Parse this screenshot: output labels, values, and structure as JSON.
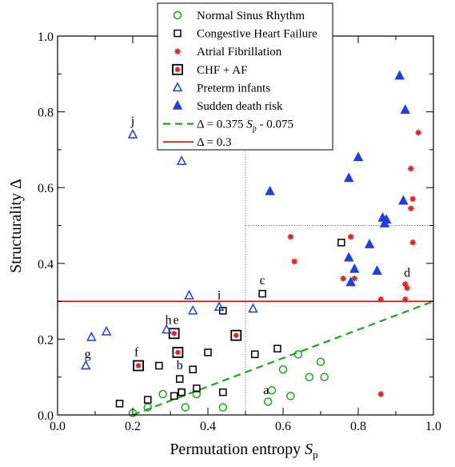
{
  "chart_data": {
    "type": "scatter",
    "xlabel": "Permutation entropy",
    "xlabel_sub": "p",
    "xlabel_var": "S",
    "ylabel": "Structurality Δ",
    "xlim": [
      0.0,
      1.0
    ],
    "ylim": [
      0.0,
      1.0
    ],
    "x_ticks": [
      "0.0",
      "0.2",
      "0.4",
      "0.6",
      "0.8",
      "1.0"
    ],
    "y_ticks": [
      "0.0",
      "0.2",
      "0.4",
      "0.6",
      "0.8",
      "1.0"
    ],
    "grid": false,
    "reference_lines": {
      "vertical_dotted_x": 0.5,
      "horizontal_dotted_y": 0.5,
      "horizontal_solid_y": 0.3,
      "dashed_line": {
        "slope": 0.375,
        "intercept": -0.075
      }
    },
    "legend": {
      "placement": "top-center",
      "entries": [
        {
          "label": "Normal Sinus Rhythm",
          "marker": "circle-open",
          "color": "#22a022"
        },
        {
          "label": "Congestive Heart Failure",
          "marker": "square-open",
          "color": "#000000"
        },
        {
          "label": "Atrial Fibrillation",
          "marker": "star",
          "color": "#e02020"
        },
        {
          "label": "CHF + AF",
          "marker": "square-star",
          "color": "#000000"
        },
        {
          "label": "Preterm infants",
          "marker": "triangle-open",
          "color": "#1f3fe0"
        },
        {
          "label": "Sudden death risk",
          "marker": "triangle-filled",
          "color": "#1f3fe0"
        },
        {
          "label": "Δ = 0.375 S",
          "label_sub": "p",
          "label_tail": " - 0.075",
          "marker": "line-dashed",
          "color": "#22a022"
        },
        {
          "label": "Δ = 0.3",
          "marker": "line-solid",
          "color": "#e02020"
        }
      ]
    },
    "series": [
      {
        "name": "Normal Sinus Rhythm",
        "points": [
          [
            0.2,
            0.005
          ],
          [
            0.24,
            0.02
          ],
          [
            0.28,
            0.055
          ],
          [
            0.33,
            0.06
          ],
          [
            0.34,
            0.02
          ],
          [
            0.37,
            0.055
          ],
          [
            0.44,
            0.02
          ],
          [
            0.56,
            0.035
          ],
          [
            0.57,
            0.065
          ],
          [
            0.6,
            0.12
          ],
          [
            0.62,
            0.05
          ],
          [
            0.64,
            0.16
          ],
          [
            0.67,
            0.1
          ],
          [
            0.7,
            0.14
          ],
          [
            0.71,
            0.1
          ]
        ]
      },
      {
        "name": "Congestive Heart Failure",
        "points": [
          [
            0.165,
            0.03
          ],
          [
            0.24,
            0.04
          ],
          [
            0.27,
            0.13
          ],
          [
            0.31,
            0.05
          ],
          [
            0.325,
            0.095
          ],
          [
            0.33,
            0.06
          ],
          [
            0.36,
            0.12
          ],
          [
            0.37,
            0.07
          ],
          [
            0.4,
            0.165
          ],
          [
            0.44,
            0.06
          ],
          [
            0.44,
            0.275
          ],
          [
            0.525,
            0.16
          ],
          [
            0.545,
            0.32
          ],
          [
            0.585,
            0.175
          ],
          [
            0.755,
            0.455
          ]
        ]
      },
      {
        "name": "Atrial Fibrillation",
        "points": [
          [
            0.62,
            0.47
          ],
          [
            0.63,
            0.405
          ],
          [
            0.76,
            0.36
          ],
          [
            0.78,
            0.47
          ],
          [
            0.79,
            0.36
          ],
          [
            0.86,
            0.305
          ],
          [
            0.86,
            0.055
          ],
          [
            0.925,
            0.345
          ],
          [
            0.925,
            0.305
          ],
          [
            0.93,
            0.335
          ],
          [
            0.94,
            0.65
          ],
          [
            0.94,
            0.545
          ],
          [
            0.945,
            0.57
          ],
          [
            0.945,
            0.455
          ],
          [
            0.96,
            0.745
          ]
        ]
      },
      {
        "name": "CHF + AF",
        "points": [
          [
            0.215,
            0.13
          ],
          [
            0.31,
            0.215
          ],
          [
            0.32,
            0.165
          ],
          [
            0.475,
            0.21
          ]
        ]
      },
      {
        "name": "Preterm infants",
        "points": [
          [
            0.075,
            0.13
          ],
          [
            0.09,
            0.205
          ],
          [
            0.13,
            0.22
          ],
          [
            0.2,
            0.74
          ],
          [
            0.33,
            0.67
          ],
          [
            0.35,
            0.315
          ],
          [
            0.36,
            0.275
          ],
          [
            0.29,
            0.225
          ],
          [
            0.43,
            0.285
          ],
          [
            0.52,
            0.28
          ]
        ]
      },
      {
        "name": "Sudden death risk",
        "points": [
          [
            0.565,
            0.59
          ],
          [
            0.775,
            0.625
          ],
          [
            0.775,
            0.415
          ],
          [
            0.78,
            0.35
          ],
          [
            0.79,
            0.385
          ],
          [
            0.8,
            0.68
          ],
          [
            0.83,
            0.45
          ],
          [
            0.85,
            0.38
          ],
          [
            0.865,
            0.52
          ],
          [
            0.87,
            0.505
          ],
          [
            0.875,
            0.515
          ],
          [
            0.91,
            0.895
          ],
          [
            0.92,
            0.565
          ],
          [
            0.925,
            0.805
          ]
        ]
      }
    ],
    "annotations": [
      {
        "text": "j",
        "x": 0.2,
        "y": 0.765
      },
      {
        "text": "i",
        "x": 0.43,
        "y": 0.305
      },
      {
        "text": "c",
        "x": 0.545,
        "y": 0.345
      },
      {
        "text": "h",
        "x": 0.295,
        "y": 0.24
      },
      {
        "text": "e",
        "x": 0.315,
        "y": 0.24
      },
      {
        "text": "d",
        "x": 0.93,
        "y": 0.365
      },
      {
        "text": "g",
        "x": 0.08,
        "y": 0.15
      },
      {
        "text": "f",
        "x": 0.21,
        "y": 0.155
      },
      {
        "text": "b",
        "x": 0.325,
        "y": 0.12
      },
      {
        "text": "a",
        "x": 0.555,
        "y": 0.055
      }
    ]
  }
}
